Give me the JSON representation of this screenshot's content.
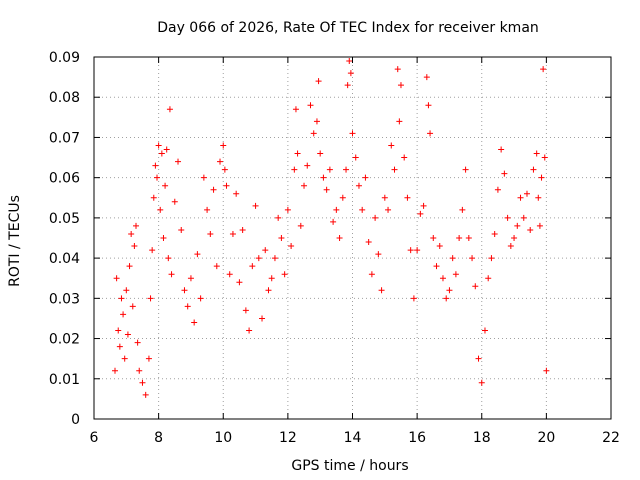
{
  "chart_data": {
    "type": "scatter",
    "title": "Day 066 of 2026, Rate Of TEC Index for receiver kman",
    "xlabel": "GPS time / hours",
    "ylabel": "ROTI / TECUs",
    "xlim": [
      6,
      22
    ],
    "ylim": [
      0,
      0.09
    ],
    "xticks": [
      6,
      8,
      10,
      12,
      14,
      16,
      18,
      20,
      22
    ],
    "xtick_labels": [
      "6",
      "8",
      "10",
      "12",
      "14",
      "16",
      "18",
      "20",
      "22"
    ],
    "yticks": [
      0,
      0.01,
      0.02,
      0.03,
      0.04,
      0.05,
      0.06,
      0.07,
      0.08,
      0.09
    ],
    "ytick_labels": [
      "0",
      "0.01",
      "0.02",
      "0.03",
      "0.04",
      "0.05",
      "0.06",
      "0.07",
      "0.08",
      "0.09"
    ],
    "grid": true,
    "marker": "plus",
    "color": "#ff0000",
    "legend": "none",
    "data_range_x": [
      6.6,
      20.0
    ],
    "series": [
      {
        "points": [
          [
            6.65,
            0.012
          ],
          [
            6.7,
            0.035
          ],
          [
            6.75,
            0.022
          ],
          [
            6.8,
            0.018
          ],
          [
            6.85,
            0.03
          ],
          [
            6.9,
            0.026
          ],
          [
            6.95,
            0.015
          ],
          [
            7.0,
            0.032
          ],
          [
            7.05,
            0.021
          ],
          [
            7.1,
            0.038
          ],
          [
            7.15,
            0.046
          ],
          [
            7.2,
            0.028
          ],
          [
            7.25,
            0.043
          ],
          [
            7.3,
            0.048
          ],
          [
            7.35,
            0.019
          ],
          [
            7.4,
            0.012
          ],
          [
            7.5,
            0.009
          ],
          [
            7.6,
            0.006
          ],
          [
            7.7,
            0.015
          ],
          [
            7.75,
            0.03
          ],
          [
            7.8,
            0.042
          ],
          [
            7.85,
            0.055
          ],
          [
            7.9,
            0.063
          ],
          [
            7.95,
            0.06
          ],
          [
            8.0,
            0.068
          ],
          [
            8.05,
            0.052
          ],
          [
            8.1,
            0.066
          ],
          [
            8.15,
            0.045
          ],
          [
            8.2,
            0.058
          ],
          [
            8.25,
            0.067
          ],
          [
            8.3,
            0.04
          ],
          [
            8.35,
            0.077
          ],
          [
            8.4,
            0.036
          ],
          [
            8.5,
            0.054
          ],
          [
            8.6,
            0.064
          ],
          [
            8.7,
            0.047
          ],
          [
            8.8,
            0.032
          ],
          [
            8.9,
            0.028
          ],
          [
            9.0,
            0.035
          ],
          [
            9.1,
            0.024
          ],
          [
            9.2,
            0.041
          ],
          [
            9.3,
            0.03
          ],
          [
            9.4,
            0.06
          ],
          [
            9.5,
            0.052
          ],
          [
            9.6,
            0.046
          ],
          [
            9.7,
            0.057
          ],
          [
            9.8,
            0.038
          ],
          [
            9.9,
            0.064
          ],
          [
            10.0,
            0.068
          ],
          [
            10.05,
            0.062
          ],
          [
            10.1,
            0.058
          ],
          [
            10.2,
            0.036
          ],
          [
            10.3,
            0.046
          ],
          [
            10.4,
            0.056
          ],
          [
            10.5,
            0.034
          ],
          [
            10.6,
            0.047
          ],
          [
            10.7,
            0.027
          ],
          [
            10.8,
            0.022
          ],
          [
            10.9,
            0.038
          ],
          [
            11.0,
            0.053
          ],
          [
            11.1,
            0.04
          ],
          [
            11.2,
            0.025
          ],
          [
            11.3,
            0.042
          ],
          [
            11.4,
            0.032
          ],
          [
            11.5,
            0.035
          ],
          [
            11.6,
            0.04
          ],
          [
            11.7,
            0.05
          ],
          [
            11.8,
            0.045
          ],
          [
            11.9,
            0.036
          ],
          [
            12.0,
            0.052
          ],
          [
            12.1,
            0.043
          ],
          [
            12.2,
            0.062
          ],
          [
            12.25,
            0.077
          ],
          [
            12.3,
            0.066
          ],
          [
            12.4,
            0.048
          ],
          [
            12.5,
            0.058
          ],
          [
            12.6,
            0.063
          ],
          [
            12.7,
            0.078
          ],
          [
            12.8,
            0.071
          ],
          [
            12.9,
            0.074
          ],
          [
            12.95,
            0.084
          ],
          [
            13.0,
            0.066
          ],
          [
            13.1,
            0.06
          ],
          [
            13.2,
            0.057
          ],
          [
            13.3,
            0.062
          ],
          [
            13.4,
            0.049
          ],
          [
            13.5,
            0.052
          ],
          [
            13.6,
            0.045
          ],
          [
            13.7,
            0.055
          ],
          [
            13.8,
            0.062
          ],
          [
            13.85,
            0.083
          ],
          [
            13.9,
            0.089
          ],
          [
            13.95,
            0.086
          ],
          [
            14.0,
            0.071
          ],
          [
            14.1,
            0.065
          ],
          [
            14.2,
            0.058
          ],
          [
            14.3,
            0.052
          ],
          [
            14.4,
            0.06
          ],
          [
            14.5,
            0.044
          ],
          [
            14.6,
            0.036
          ],
          [
            14.7,
            0.05
          ],
          [
            14.8,
            0.041
          ],
          [
            14.9,
            0.032
          ],
          [
            15.0,
            0.055
          ],
          [
            15.1,
            0.052
          ],
          [
            15.2,
            0.068
          ],
          [
            15.3,
            0.062
          ],
          [
            15.4,
            0.087
          ],
          [
            15.45,
            0.074
          ],
          [
            15.5,
            0.083
          ],
          [
            15.6,
            0.065
          ],
          [
            15.7,
            0.055
          ],
          [
            15.8,
            0.042
          ],
          [
            15.9,
            0.03
          ],
          [
            16.0,
            0.042
          ],
          [
            16.1,
            0.051
          ],
          [
            16.2,
            0.053
          ],
          [
            16.3,
            0.085
          ],
          [
            16.35,
            0.078
          ],
          [
            16.4,
            0.071
          ],
          [
            16.5,
            0.045
          ],
          [
            16.6,
            0.038
          ],
          [
            16.7,
            0.043
          ],
          [
            16.8,
            0.035
          ],
          [
            16.9,
            0.03
          ],
          [
            17.0,
            0.032
          ],
          [
            17.1,
            0.04
          ],
          [
            17.2,
            0.036
          ],
          [
            17.3,
            0.045
          ],
          [
            17.4,
            0.052
          ],
          [
            17.5,
            0.062
          ],
          [
            17.6,
            0.045
          ],
          [
            17.7,
            0.04
          ],
          [
            17.8,
            0.033
          ],
          [
            17.9,
            0.015
          ],
          [
            18.0,
            0.009
          ],
          [
            18.1,
            0.022
          ],
          [
            18.2,
            0.035
          ],
          [
            18.3,
            0.04
          ],
          [
            18.4,
            0.046
          ],
          [
            18.5,
            0.057
          ],
          [
            18.6,
            0.067
          ],
          [
            18.7,
            0.061
          ],
          [
            18.8,
            0.05
          ],
          [
            18.9,
            0.043
          ],
          [
            19.0,
            0.045
          ],
          [
            19.1,
            0.048
          ],
          [
            19.2,
            0.055
          ],
          [
            19.3,
            0.05
          ],
          [
            19.4,
            0.056
          ],
          [
            19.5,
            0.047
          ],
          [
            19.6,
            0.062
          ],
          [
            19.7,
            0.066
          ],
          [
            19.75,
            0.055
          ],
          [
            19.8,
            0.048
          ],
          [
            19.85,
            0.06
          ],
          [
            19.9,
            0.087
          ],
          [
            19.95,
            0.065
          ],
          [
            20.0,
            0.012
          ]
        ]
      }
    ]
  }
}
